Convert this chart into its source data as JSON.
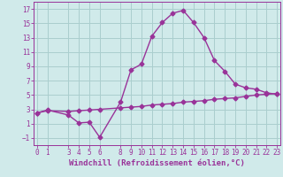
{
  "line1_x": [
    0,
    1,
    3,
    4,
    5,
    6,
    8,
    9,
    10,
    11,
    12,
    13,
    14,
    15,
    16,
    17,
    18,
    19,
    20,
    21,
    22,
    23
  ],
  "line1_y": [
    2.5,
    2.9,
    2.2,
    1.1,
    1.2,
    -0.9,
    4.0,
    8.5,
    9.3,
    13.2,
    15.1,
    16.4,
    16.8,
    15.1,
    13.0,
    9.8,
    8.3,
    6.5,
    6.0,
    5.8,
    5.3,
    5.1
  ],
  "line2_x": [
    0,
    1,
    3,
    4,
    5,
    6,
    8,
    9,
    10,
    11,
    12,
    13,
    14,
    15,
    16,
    17,
    18,
    19,
    20,
    21,
    22,
    23
  ],
  "line2_y": [
    2.5,
    2.8,
    2.7,
    2.8,
    2.9,
    3.0,
    3.2,
    3.3,
    3.4,
    3.6,
    3.7,
    3.8,
    4.0,
    4.1,
    4.2,
    4.4,
    4.5,
    4.6,
    4.8,
    5.0,
    5.1,
    5.2
  ],
  "line_color": "#993399",
  "bg_color": "#d0eaea",
  "grid_color": "#aacece",
  "xlabel": "Windchill (Refroidissement éolien,°C)",
  "xticks": [
    0,
    1,
    3,
    4,
    5,
    6,
    8,
    9,
    10,
    11,
    12,
    13,
    14,
    15,
    16,
    17,
    18,
    19,
    20,
    21,
    22,
    23
  ],
  "yticks": [
    -1,
    1,
    3,
    5,
    7,
    9,
    11,
    13,
    15,
    17
  ],
  "ylim": [
    -2.0,
    18.0
  ],
  "xlim": [
    -0.3,
    23.3
  ],
  "marker": "D",
  "markersize": 2.5,
  "linewidth": 1.0,
  "xlabel_fontsize": 6.5,
  "tick_fontsize": 5.5
}
